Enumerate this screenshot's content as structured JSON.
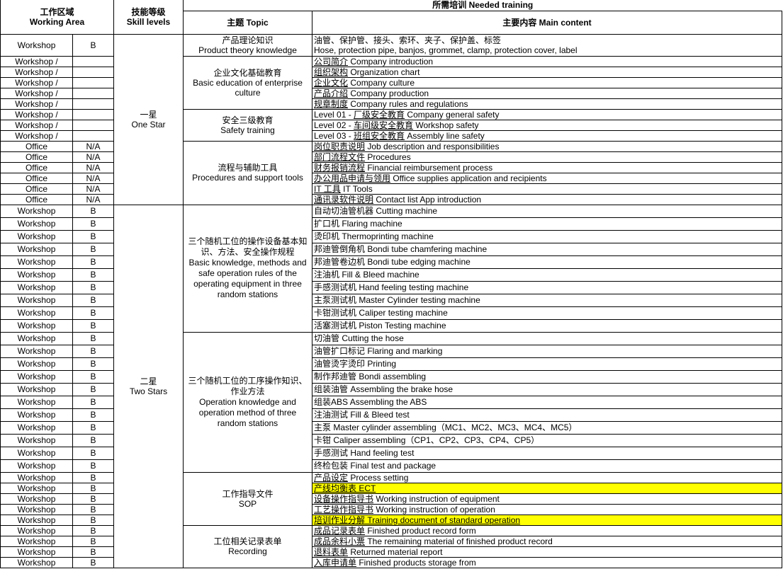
{
  "header": {
    "working_area": {
      "cn": "工作区域",
      "en": "Working Area"
    },
    "skill_levels": {
      "cn": "技能等级",
      "en": "Skill levels"
    },
    "needed_training": "所需培训 Needed training",
    "topic": "主题 Topic",
    "main_content": "主要内容 Main content"
  },
  "highlight_color": "#ffff00",
  "skills": [
    {
      "cn": "一星",
      "en": "One Star",
      "rows": 15
    },
    {
      "cn": "二星",
      "en": "Two Stars",
      "rows": 30
    }
  ],
  "topics": [
    {
      "cn": "产品理论知识",
      "en": "Product theory knowledge",
      "items": [
        {
          "area": "Workshop",
          "level": "B",
          "cn": "油管、保护管、接头、索环、夹子、保护盖、标签",
          "en": "Hose, protection pipe, banjos, grommet, clamp, protection cover, label",
          "two_line": true
        }
      ]
    },
    {
      "cn": "企业文化基础教育",
      "en": "Basic education of enterprise culture",
      "items": [
        {
          "area": "Workshop /",
          "level": "",
          "cn": "公司简介",
          "en": "Company introduction",
          "link": true
        },
        {
          "area": "Workshop /",
          "level": "",
          "cn": "组织架构",
          "en": "Organization chart",
          "link": true
        },
        {
          "area": "Workshop /",
          "level": "",
          "cn": "企业文化",
          "en": "Company culture",
          "link": true
        },
        {
          "area": "Workshop /",
          "level": "",
          "cn": "产品介绍",
          "en": "Company production",
          "link": true
        },
        {
          "area": "Workshop /",
          "level": "",
          "cn": "规章制度",
          "en": "Company rules and regulations",
          "link": true
        }
      ]
    },
    {
      "cn": "安全三级教育",
      "en": "Safety training",
      "items": [
        {
          "area": "Workshop /",
          "level": "",
          "pre": "Level 01 - ",
          "cn": "厂级安全教育",
          "en": "Company general safety",
          "link": true
        },
        {
          "area": "Workshop /",
          "level": "",
          "pre": "Level 02 - ",
          "cn": "车间级安全教育",
          "en": "Workshop safety",
          "link": true
        },
        {
          "area": "Workshop /",
          "level": "",
          "pre": "Level 03 - ",
          "cn": "班组安全教育",
          "en": "Assembly line safety",
          "link": true
        }
      ]
    },
    {
      "cn": "流程与辅助工具",
      "en": "Procedures and support tools",
      "items": [
        {
          "area": "Office",
          "level": "N/A",
          "cn": "岗位职责说明",
          "en": "Job description and responsibilities",
          "link": true
        },
        {
          "area": "Office",
          "level": "N/A",
          "cn": "部门流程文件",
          "en": " Procedures",
          "link": true
        },
        {
          "area": "Office",
          "level": "N/A",
          "cn": "财务报销流程",
          "en": "Financial reimbursement process",
          "link": true
        },
        {
          "area": "Office",
          "level": "N/A",
          "cn": "办公用品申请与领用",
          "en": "Office supplies application and recipients",
          "link": true
        },
        {
          "area": "Office",
          "level": "N/A",
          "cn": "IT 工具",
          "en": "IT Tools",
          "link": true
        },
        {
          "area": "Office",
          "level": "N/A",
          "cn": "通讯录软件说明",
          "en": "Contact list App introduction",
          "link": true
        }
      ]
    },
    {
      "cn": "三个随机工位的操作设备基本知识、方法、安全操作规程",
      "en": "Basic knowledge, methods and safe operation rules of the operating equipment in three random stations",
      "tall": true,
      "items": [
        {
          "area": "Workshop",
          "level": "B",
          "cn": "自动切油管机器",
          "en": " Cutting machine"
        },
        {
          "area": "Workshop",
          "level": "B",
          "cn": "扩口机",
          "en": " Flaring machine"
        },
        {
          "area": "Workshop",
          "level": "B",
          "cn": "烫印机",
          "en": "Thermoprinting machine"
        },
        {
          "area": "Workshop",
          "level": "B",
          "cn": "邦迪管倒角机",
          "en": "Bondi tube chamfering machine"
        },
        {
          "area": "Workshop",
          "level": "B",
          "cn": "邦迪管卷边机",
          "en": "Bondi tube edging machine"
        },
        {
          "area": "Workshop",
          "level": "B",
          "cn": "注油机",
          "en": "Fill & Bleed machine"
        },
        {
          "area": "Workshop",
          "level": "B",
          "cn": "手感测试机",
          "en": "Hand feeling testing machine"
        },
        {
          "area": "Workshop",
          "level": "B",
          "cn": "主泵测试机",
          "en": "Master Cylinder testing machine"
        },
        {
          "area": "Workshop",
          "level": "B",
          "cn": "卡钳测试机",
          "en": "Caliper testing machine"
        },
        {
          "area": "Workshop",
          "level": "B",
          "cn": "活塞测试机",
          "en": "Piston Testing machine"
        }
      ]
    },
    {
      "cn": "三个随机工位的工序操作知识、作业方法",
      "en": "Operation knowledge and operation method of three random stations",
      "tall": true,
      "items": [
        {
          "area": "Workshop",
          "level": "B",
          "cn": "切油管",
          "en": "Cutting the hose"
        },
        {
          "area": "Workshop",
          "level": "B",
          "cn": "油管扩口标记",
          "en": "Flaring and marking"
        },
        {
          "area": "Workshop",
          "level": "B",
          "cn": "油管烫字烫印",
          "en": "Printing"
        },
        {
          "area": "Workshop",
          "level": "B",
          "cn": "制作邦迪管",
          "en": "Bondi assembling"
        },
        {
          "area": "Workshop",
          "level": "B",
          "cn": "组装油管",
          "en": "Assembling the brake hose"
        },
        {
          "area": "Workshop",
          "level": "B",
          "cn": "组装ABS",
          "en": "Assembling the ABS"
        },
        {
          "area": "Workshop",
          "level": "B",
          "cn": "注油测试",
          "en": "Fill & Bleed test"
        },
        {
          "area": "Workshop",
          "level": "B",
          "cn": "主泵",
          "en": "Master cylinder assembling（MC1、MC2、MC3、MC4、MC5）"
        },
        {
          "area": "Workshop",
          "level": "B",
          "cn": "卡钳",
          "en": "Caliper assembling（CP1、CP2、CP3、CP4、CP5）"
        },
        {
          "area": "Workshop",
          "level": "B",
          "cn": "手感测试",
          "en": "Hand feeling test"
        },
        {
          "area": "Workshop",
          "level": "B",
          "cn": "终检包装",
          "en": "Final test and package"
        }
      ]
    },
    {
      "cn": "工作指导文件",
      "en": "SOP",
      "items": [
        {
          "area": "Workshop",
          "level": "B",
          "cn": "产品设定",
          "en": "Process setting",
          "link": true
        },
        {
          "area": "Workshop",
          "level": "B",
          "cn": "产线均衡表",
          "en": "ECT",
          "link": true,
          "highlight": true
        },
        {
          "area": "Workshop",
          "level": "B",
          "cn": "设备操作指导书",
          "en": "Working instruction of equipment",
          "link": true
        },
        {
          "area": "Workshop",
          "level": "B",
          "cn": "工艺操作指导书",
          "en": "Working instruction of operation",
          "link": true
        },
        {
          "area": "Workshop",
          "level": "B",
          "cn": "培训作业分解",
          "en": "Training document of standard operation",
          "link": true,
          "highlight": true
        }
      ]
    },
    {
      "cn": "工位相关记录表单",
      "en": "Recording",
      "items": [
        {
          "area": "Workshop",
          "level": "B",
          "cn": "成品记录表单",
          "en": "Finished product record form",
          "link": true
        },
        {
          "area": "Workshop",
          "level": "B",
          "cn": "成品余料小票",
          "en": "The remaining material of finished product record",
          "link": true
        },
        {
          "area": "Workshop",
          "level": "B",
          "cn": "退料表单",
          "en": "Returned material report",
          "link": true
        },
        {
          "area": "Workshop",
          "level": "B",
          "cn": "入库申请单",
          "en": "Finished products storage from",
          "link": true
        }
      ]
    }
  ]
}
